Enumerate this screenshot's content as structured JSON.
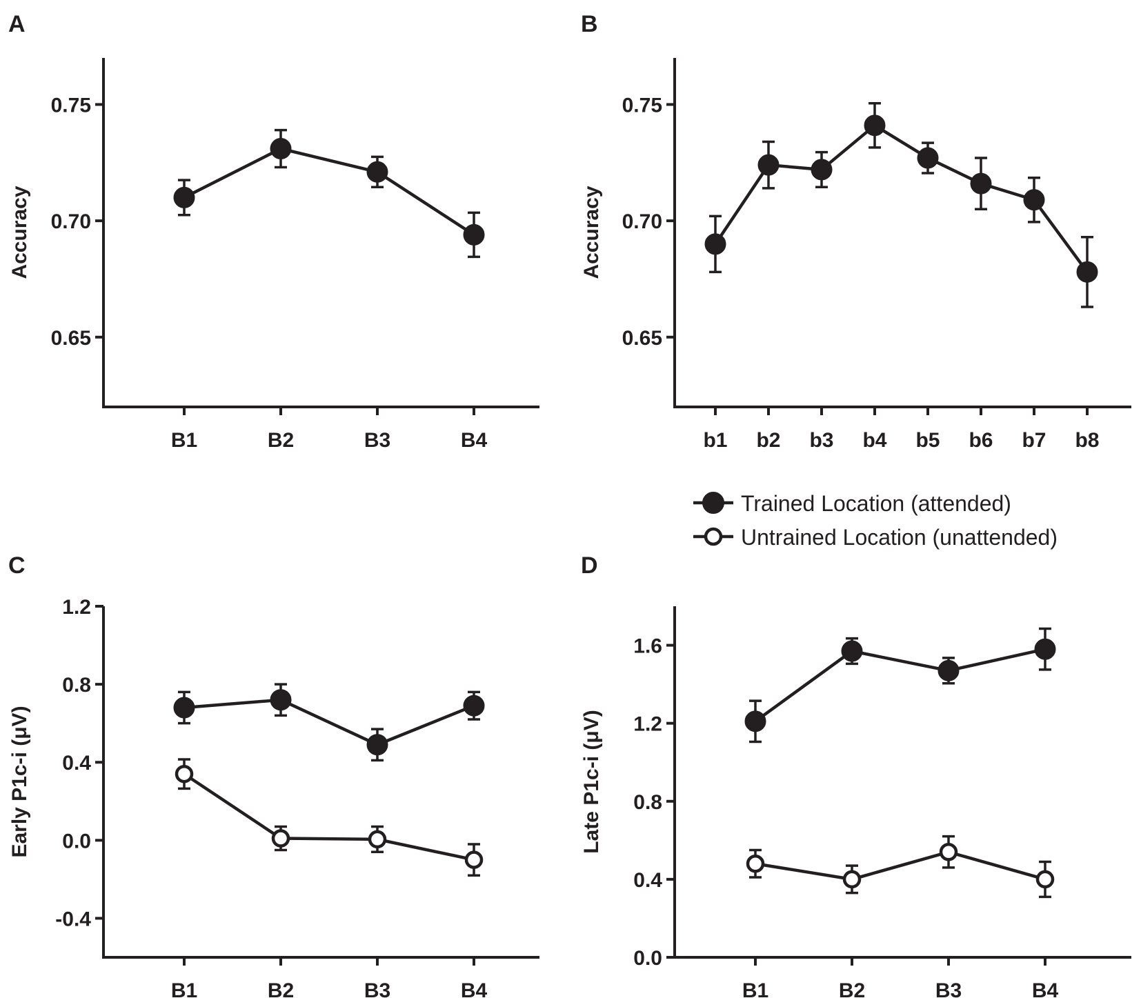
{
  "legend": {
    "series": [
      {
        "name": "Trained Location (attended)",
        "marker": "filled"
      },
      {
        "name": "Untrained Location (unattended)",
        "marker": "open"
      }
    ]
  },
  "colors": {
    "ink": "#231f20",
    "background": "#ffffff",
    "open_fill": "#ffffff"
  },
  "chart_data": [
    {
      "panel": "A",
      "type": "line",
      "title": "",
      "xlabel": "",
      "ylabel": "Accuracy",
      "categories": [
        "B1",
        "B2",
        "B3",
        "B4"
      ],
      "ylim": [
        0.62,
        0.77
      ],
      "yticks": [
        0.65,
        0.7,
        0.75
      ],
      "ytick_labels": [
        "0.65",
        "0.70",
        "0.75"
      ],
      "series": [
        {
          "name": "Trained Location (attended)",
          "marker": "filled",
          "values": [
            0.71,
            0.731,
            0.721,
            0.694
          ],
          "errors": [
            0.0075,
            0.008,
            0.0065,
            0.0095
          ]
        }
      ]
    },
    {
      "panel": "B",
      "type": "line",
      "title": "",
      "xlabel": "",
      "ylabel": "Accuracy",
      "categories": [
        "b1",
        "b2",
        "b3",
        "b4",
        "b5",
        "b6",
        "b7",
        "b8"
      ],
      "ylim": [
        0.62,
        0.77
      ],
      "yticks": [
        0.65,
        0.7,
        0.75
      ],
      "ytick_labels": [
        "0.65",
        "0.70",
        "0.75"
      ],
      "series": [
        {
          "name": "Trained Location (attended)",
          "marker": "filled",
          "values": [
            0.69,
            0.724,
            0.722,
            0.741,
            0.727,
            0.716,
            0.709,
            0.678
          ],
          "errors": [
            0.012,
            0.01,
            0.0075,
            0.0095,
            0.0065,
            0.011,
            0.0095,
            0.015
          ]
        }
      ]
    },
    {
      "panel": "C",
      "type": "line",
      "title": "",
      "xlabel": "",
      "ylabel": "Early P1c-i (μV)",
      "categories": [
        "B1",
        "B2",
        "B3",
        "B4"
      ],
      "ylim": [
        -0.6,
        1.2
      ],
      "yticks": [
        -0.4,
        0.0,
        0.4,
        0.8,
        1.2
      ],
      "ytick_labels": [
        "-0.4",
        "0.0",
        "0.4",
        "0.8",
        "1.2"
      ],
      "series": [
        {
          "name": "Trained Location (attended)",
          "marker": "filled",
          "values": [
            0.68,
            0.72,
            0.49,
            0.69
          ],
          "errors": [
            0.08,
            0.08,
            0.08,
            0.07
          ]
        },
        {
          "name": "Untrained Location (unattended)",
          "marker": "open",
          "values": [
            0.34,
            0.01,
            0.005,
            -0.1
          ],
          "errors": [
            0.075,
            0.06,
            0.065,
            0.08
          ]
        }
      ]
    },
    {
      "panel": "D",
      "type": "line",
      "title": "",
      "xlabel": "",
      "ylabel": "Late P1c-i (μV)",
      "categories": [
        "B1",
        "B2",
        "B3",
        "B4"
      ],
      "ylim": [
        0.0,
        1.8
      ],
      "yticks": [
        0.0,
        0.4,
        0.8,
        1.2,
        1.6
      ],
      "ytick_labels": [
        "0.0",
        "0.4",
        "0.8",
        "1.2",
        "1.6"
      ],
      "series": [
        {
          "name": "Trained Location (attended)",
          "marker": "filled",
          "values": [
            1.21,
            1.57,
            1.47,
            1.58
          ],
          "errors": [
            0.105,
            0.065,
            0.065,
            0.105
          ]
        },
        {
          "name": "Untrained Location (unattended)",
          "marker": "open",
          "values": [
            0.48,
            0.4,
            0.54,
            0.4
          ],
          "errors": [
            0.07,
            0.07,
            0.08,
            0.09
          ]
        }
      ]
    }
  ]
}
